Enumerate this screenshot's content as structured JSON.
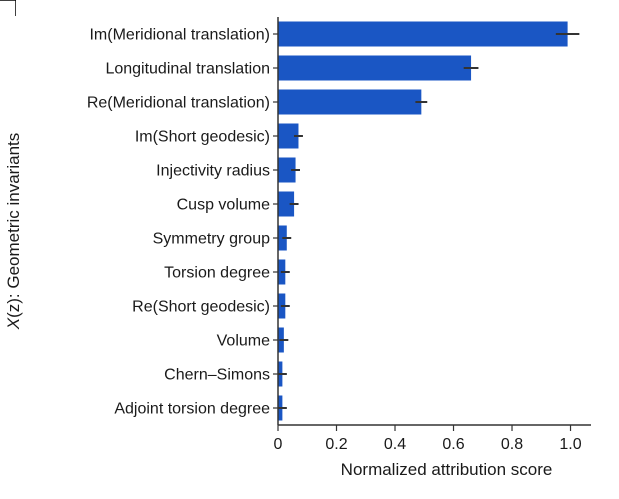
{
  "chart_data": {
    "type": "bar",
    "orientation": "horizontal",
    "categories": [
      "Im(Meridional translation)",
      "Longitudinal translation",
      "Re(Meridional translation)",
      "Im(Short geodesic)",
      "Injectivity radius",
      "Cusp volume",
      "Symmetry group",
      "Torsion degree",
      "Re(Short geodesic)",
      "Volume",
      "Chern–Simons",
      "Adjoint torsion degree"
    ],
    "values": [
      0.99,
      0.66,
      0.49,
      0.07,
      0.06,
      0.055,
      0.03,
      0.025,
      0.025,
      0.02,
      0.015,
      0.015
    ],
    "errors": [
      0.03,
      0.015,
      0.01,
      0.005,
      0.005,
      0.005,
      0.005,
      0.005,
      0.005,
      0.005,
      0.005,
      0.005
    ],
    "xlabel": "Normalized attribution score",
    "ylabel": "X(z): Geometric invariants",
    "xlim": [
      0,
      1.07
    ],
    "xticks": [
      "0",
      "0.2",
      "0.4",
      "0.6",
      "0.8",
      "1.0"
    ],
    "xtick_values": [
      0,
      0.2,
      0.4,
      0.6,
      0.8,
      1.0
    ],
    "bar_color": "#1a56c4",
    "error_color": "#333333",
    "grid": false,
    "legend": "none"
  }
}
